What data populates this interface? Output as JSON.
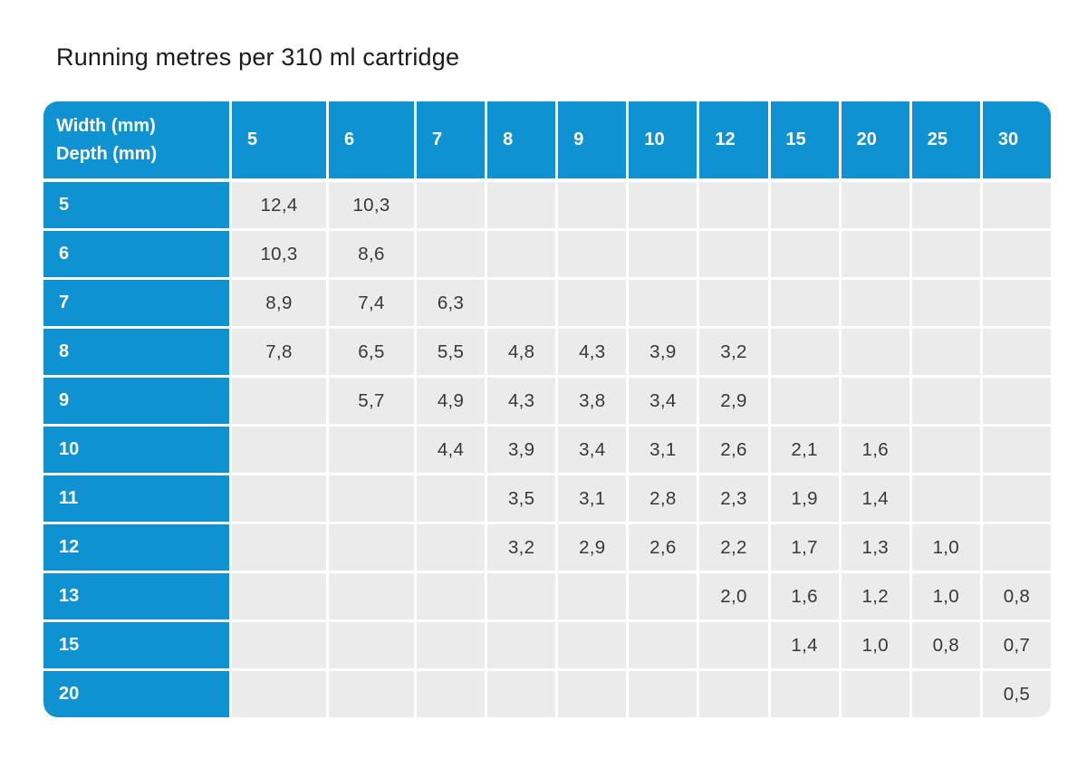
{
  "title": "Running metres per 310 ml cartridge",
  "colors": {
    "header_blue": "#0e92d1",
    "cell_gray": "#ebebeb",
    "header_text": "#ffffff",
    "data_text": "#383838"
  },
  "table": {
    "corner": {
      "line1": "Width (mm)",
      "line2": "Depth (mm)"
    },
    "columns": [
      "5",
      "6",
      "7",
      "8",
      "9",
      "10",
      "12",
      "15",
      "20",
      "25",
      "30"
    ],
    "rows": [
      {
        "label": "5",
        "values": [
          "12,4",
          "10,3",
          "",
          "",
          "",
          "",
          "",
          "",
          "",
          "",
          ""
        ]
      },
      {
        "label": "6",
        "values": [
          "10,3",
          "8,6",
          "",
          "",
          "",
          "",
          "",
          "",
          "",
          "",
          ""
        ]
      },
      {
        "label": "7",
        "values": [
          "8,9",
          "7,4",
          "6,3",
          "",
          "",
          "",
          "",
          "",
          "",
          "",
          ""
        ]
      },
      {
        "label": "8",
        "values": [
          "7,8",
          "6,5",
          "5,5",
          "4,8",
          "4,3",
          "3,9",
          "3,2",
          "",
          "",
          "",
          ""
        ]
      },
      {
        "label": "9",
        "values": [
          "",
          "5,7",
          "4,9",
          "4,3",
          "3,8",
          "3,4",
          "2,9",
          "",
          "",
          "",
          ""
        ]
      },
      {
        "label": "10",
        "values": [
          "",
          "",
          "4,4",
          "3,9",
          "3,4",
          "3,1",
          "2,6",
          "2,1",
          "1,6",
          "",
          ""
        ]
      },
      {
        "label": "11",
        "values": [
          "",
          "",
          "",
          "3,5",
          "3,1",
          "2,8",
          "2,3",
          "1,9",
          "1,4",
          "",
          ""
        ]
      },
      {
        "label": "12",
        "values": [
          "",
          "",
          "",
          "3,2",
          "2,9",
          "2,6",
          "2,2",
          "1,7",
          "1,3",
          "1,0",
          ""
        ]
      },
      {
        "label": "13",
        "values": [
          "",
          "",
          "",
          "",
          "",
          "",
          "2,0",
          "1,6",
          "1,2",
          "1,0",
          "0,8"
        ]
      },
      {
        "label": "15",
        "values": [
          "",
          "",
          "",
          "",
          "",
          "",
          "",
          "1,4",
          "1,0",
          "0,8",
          "0,7"
        ]
      },
      {
        "label": "20",
        "values": [
          "",
          "",
          "",
          "",
          "",
          "",
          "",
          "",
          "",
          "",
          "0,5"
        ]
      }
    ]
  },
  "chart_data": {
    "type": "table",
    "title": "Running metres per 310 ml cartridge",
    "x_header": "Width (mm)",
    "y_header": "Depth (mm)",
    "columns": [
      5,
      6,
      7,
      8,
      9,
      10,
      12,
      15,
      20,
      25,
      30
    ],
    "row_labels": [
      5,
      6,
      7,
      8,
      9,
      10,
      11,
      12,
      13,
      15,
      20
    ],
    "values": [
      [
        12.4,
        10.3,
        null,
        null,
        null,
        null,
        null,
        null,
        null,
        null,
        null
      ],
      [
        10.3,
        8.6,
        null,
        null,
        null,
        null,
        null,
        null,
        null,
        null,
        null
      ],
      [
        8.9,
        7.4,
        6.3,
        null,
        null,
        null,
        null,
        null,
        null,
        null,
        null
      ],
      [
        7.8,
        6.5,
        5.5,
        4.8,
        4.3,
        3.9,
        3.2,
        null,
        null,
        null,
        null
      ],
      [
        null,
        5.7,
        4.9,
        4.3,
        3.8,
        3.4,
        2.9,
        null,
        null,
        null,
        null
      ],
      [
        null,
        null,
        4.4,
        3.9,
        3.4,
        3.1,
        2.6,
        2.1,
        1.6,
        null,
        null
      ],
      [
        null,
        null,
        null,
        3.5,
        3.1,
        2.8,
        2.3,
        1.9,
        1.4,
        null,
        null
      ],
      [
        null,
        null,
        null,
        3.2,
        2.9,
        2.6,
        2.2,
        1.7,
        1.3,
        1.0,
        null
      ],
      [
        null,
        null,
        null,
        null,
        null,
        null,
        2.0,
        1.6,
        1.2,
        1.0,
        0.8
      ],
      [
        null,
        null,
        null,
        null,
        null,
        null,
        null,
        1.4,
        1.0,
        0.8,
        0.7
      ],
      [
        null,
        null,
        null,
        null,
        null,
        null,
        null,
        null,
        null,
        null,
        0.5
      ]
    ]
  }
}
